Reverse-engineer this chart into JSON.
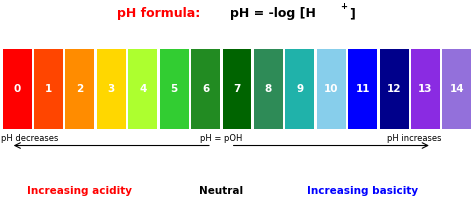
{
  "ph_values": [
    0,
    1,
    2,
    3,
    4,
    5,
    6,
    7,
    8,
    9,
    10,
    11,
    12,
    13,
    14
  ],
  "bar_colors": [
    "#FF0000",
    "#FF4500",
    "#FF8C00",
    "#FFD700",
    "#ADFF2F",
    "#32CD32",
    "#228B22",
    "#006400",
    "#2E8B57",
    "#20B2AA",
    "#87CEEB",
    "#0000FF",
    "#00008B",
    "#8A2BE2",
    "#9370DB"
  ],
  "background_color": "#FFFFFF",
  "title_red": "pH formula: ",
  "title_black1": "pH = -log [H",
  "title_sup": "+",
  "title_black2": "]",
  "arrow_text": "pH = pOH",
  "decreases_text": "pH decreases",
  "increases_text": "pH increases",
  "acidity_text": "Increasing acidity",
  "neutral_text": "Neutral",
  "basicity_text": "Increasing basicity"
}
